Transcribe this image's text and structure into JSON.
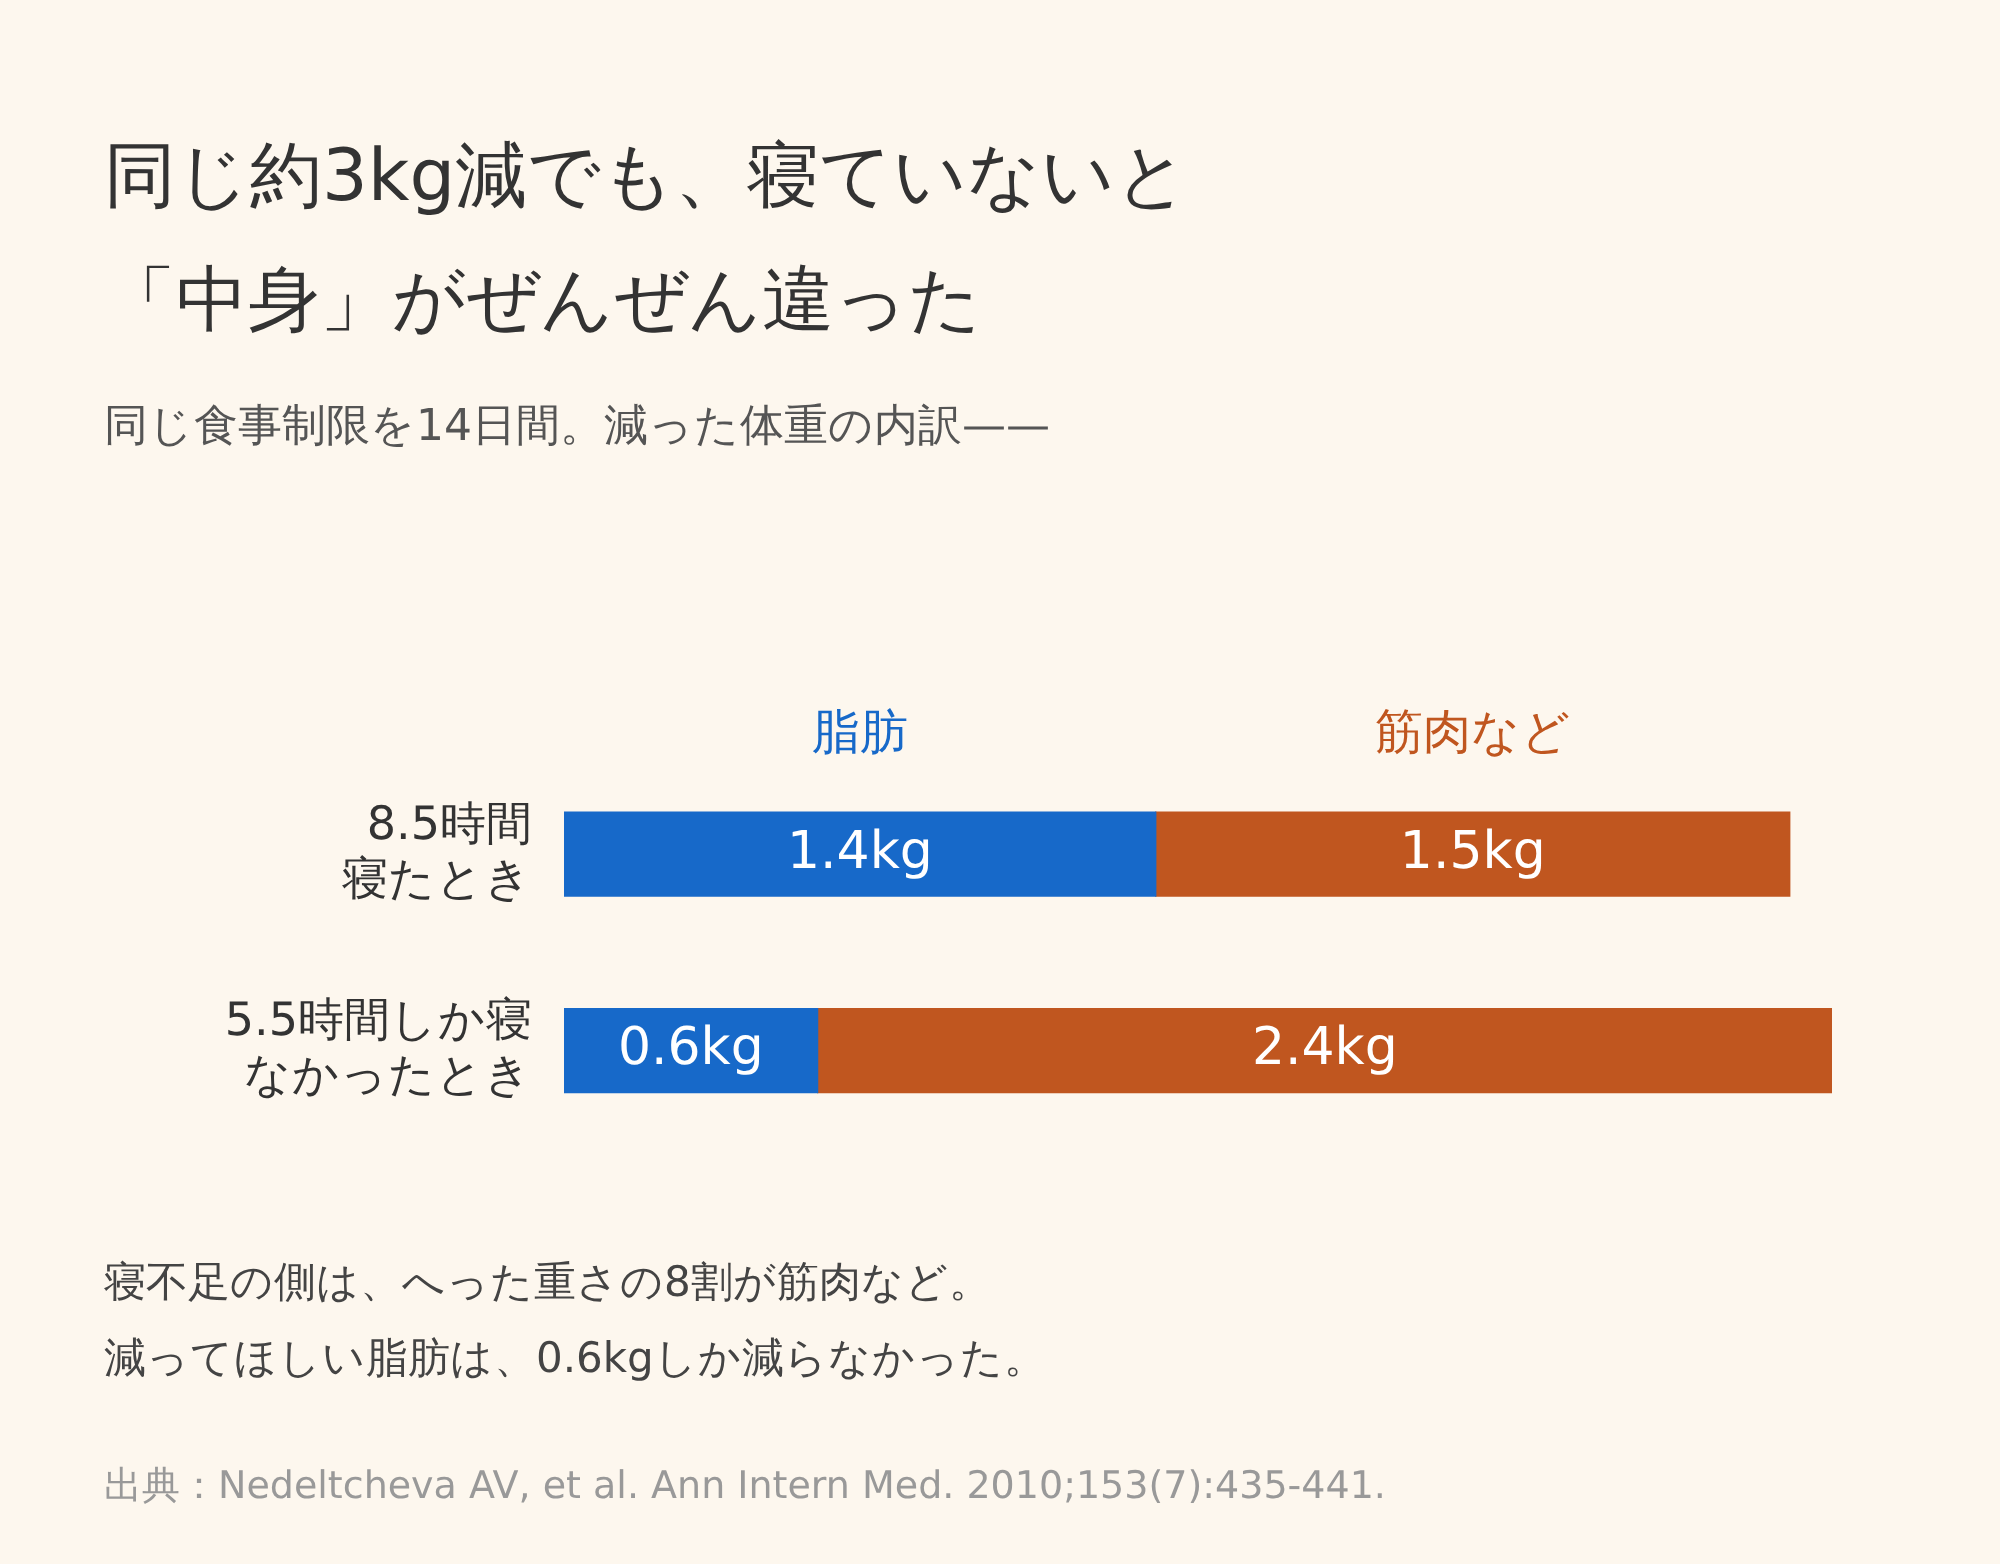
{
  "chart_data": {
    "type": "bar",
    "orientation": "horizontal",
    "stacked": true,
    "legend": "top",
    "title": "同じ約3kg減でも、寝ていないと「中身」がぜんぜん違った",
    "subtitle": "同じ食事制限を14日間。減った体重の内訳——",
    "categories": [
      "8.5時間寝たとき",
      "5.5時間しか寝なかったとき"
    ],
    "series": [
      {
        "name": "脂肪",
        "color": "#1769c9",
        "values": [
          1.4,
          0.6
        ],
        "value_labels": [
          "1.4kg",
          "0.6kg"
        ]
      },
      {
        "name": "筋肉など",
        "color": "#c0561f",
        "values": [
          1.5,
          2.4
        ],
        "value_labels": [
          "1.5kg",
          "2.4kg"
        ]
      }
    ],
    "annotations": [
      "寝不足の側は、へった重さの8割が筋肉など。",
      "減ってほしい脂肪は、0.6kgしか減らなかった。",
      "出典：Nedeltcheva AV, et al. Ann Intern Med. 2010;153(7):435-441."
    ]
  }
}
